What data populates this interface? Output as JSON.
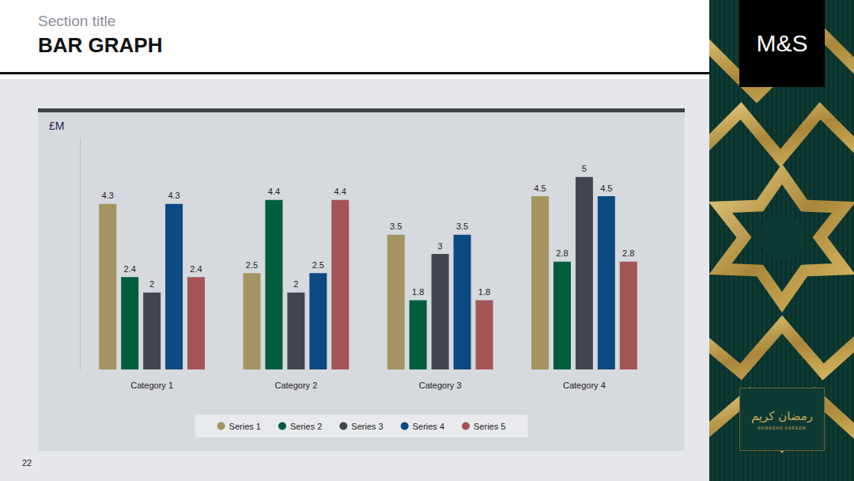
{
  "section": "Section title",
  "page_number": "22",
  "brand": "M&S",
  "badge": {
    "arabic": "رمضان كريم",
    "latin": "RAMADAN KAREEM"
  },
  "chart_data": {
    "type": "bar",
    "title": "BAR GRAPH",
    "ylabel": "£M",
    "categories": [
      "Category 1",
      "Category 2",
      "Category 3",
      "Category 4"
    ],
    "series": [
      {
        "name": "Series 1",
        "color": "#a39461",
        "values": [
          4.3,
          2.5,
          3.5,
          4.5
        ]
      },
      {
        "name": "Series 2",
        "color": "#005e3f",
        "values": [
          2.4,
          4.4,
          1.8,
          2.8
        ]
      },
      {
        "name": "Series 3",
        "color": "#41454c",
        "values": [
          2,
          2,
          3,
          5
        ]
      },
      {
        "name": "Series 4",
        "color": "#0b4a82",
        "values": [
          4.3,
          2.5,
          3.5,
          4.5
        ]
      },
      {
        "name": "Series 5",
        "color": "#a45455",
        "values": [
          2.4,
          4.4,
          1.8,
          2.8
        ]
      }
    ],
    "ylim": [
      0,
      6
    ],
    "grid": false,
    "legend": "bottom",
    "data_labels": true,
    "tick_labels": "x"
  }
}
